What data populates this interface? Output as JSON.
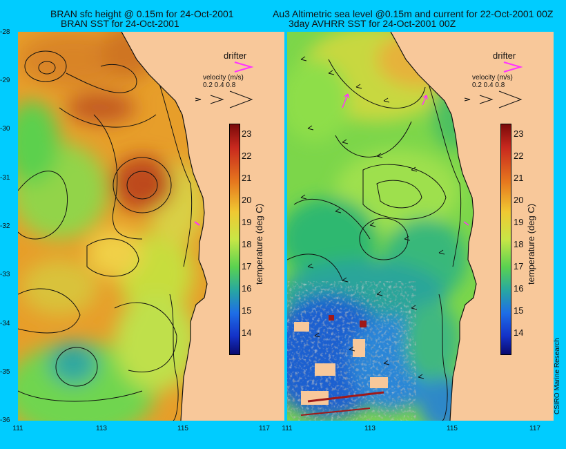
{
  "titles": {
    "left_line1": "BRAN sfc height @ 0.15m for 24-Oct-2001",
    "left_line2": "BRAN SST for 24-Oct-2001",
    "right_line1": "Au3 Altimetric sea level  @0.15m and current for 22-Oct-2001 00Z",
    "right_line2": "3day AVHRR SST for 24-Oct-2001 00Z"
  },
  "axes": {
    "lat_ticks": [
      "-28",
      "-29",
      "-30",
      "-31",
      "-32",
      "-33",
      "-34",
      "-35",
      "-36"
    ],
    "lon_ticks": [
      "111",
      "113",
      "115",
      "117"
    ]
  },
  "legend": {
    "drifter_label": "drifter",
    "velocity_label": "velocity (m/s)",
    "velocity_values": "0.2 0.4 0.8"
  },
  "colorbar": {
    "title": "temperature (deg C)",
    "ticks": [
      "23",
      "22",
      "21",
      "20",
      "19",
      "18",
      "17",
      "16",
      "15",
      "14"
    ],
    "range": [
      13.5,
      23.5
    ]
  },
  "credit": "CSIRO Marine Research",
  "colors": {
    "background": "#00ccff",
    "land": "#f8c89a",
    "drifter": "#ff33ff"
  }
}
